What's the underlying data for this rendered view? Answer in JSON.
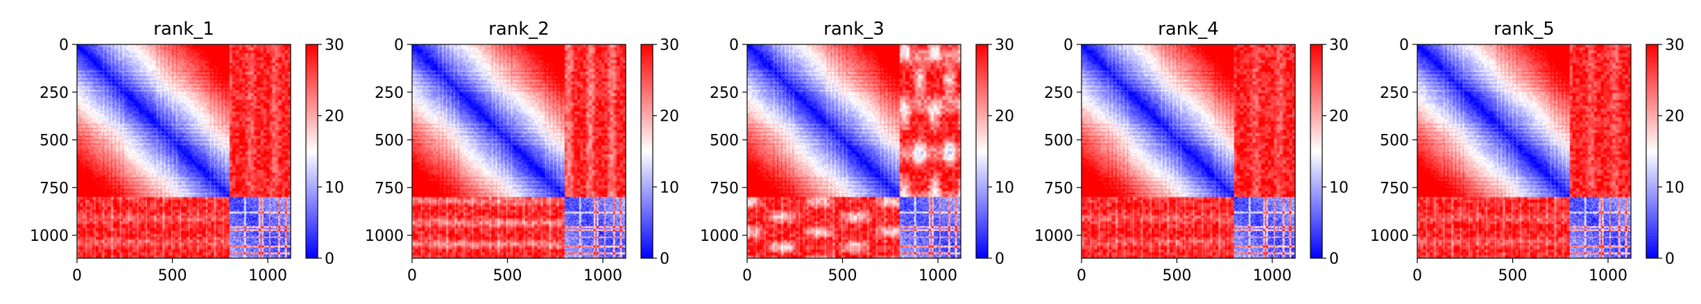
{
  "chart_data": [
    {
      "type": "heatmap",
      "title": "rank_1",
      "x_ticks": [
        0,
        500,
        1000
      ],
      "y_ticks": [
        0,
        250,
        500,
        750,
        1000
      ],
      "data_extent": [
        0,
        1120
      ],
      "block_boundary": 800,
      "colorbar": {
        "colormap": "bwr",
        "vmin": 0,
        "vmax": 30,
        "ticks": [
          0,
          10,
          20,
          30
        ]
      },
      "variant": 1
    },
    {
      "type": "heatmap",
      "title": "rank_2",
      "x_ticks": [
        0,
        500,
        1000
      ],
      "y_ticks": [
        0,
        250,
        500,
        750,
        1000
      ],
      "data_extent": [
        0,
        1120
      ],
      "block_boundary": 800,
      "colorbar": {
        "colormap": "bwr",
        "vmin": 0,
        "vmax": 30,
        "ticks": [
          0,
          10,
          20,
          30
        ]
      },
      "variant": 2
    },
    {
      "type": "heatmap",
      "title": "rank_3",
      "x_ticks": [
        0,
        500,
        1000
      ],
      "y_ticks": [
        0,
        250,
        500,
        750,
        1000
      ],
      "data_extent": [
        0,
        1120
      ],
      "block_boundary": 800,
      "colorbar": {
        "colormap": "bwr",
        "vmin": 0,
        "vmax": 30,
        "ticks": [
          0,
          10,
          20,
          30
        ]
      },
      "variant": 3
    },
    {
      "type": "heatmap",
      "title": "rank_4",
      "x_ticks": [
        0,
        500,
        1000
      ],
      "y_ticks": [
        0,
        250,
        500,
        750,
        1000
      ],
      "data_extent": [
        0,
        1120
      ],
      "block_boundary": 800,
      "colorbar": {
        "colormap": "bwr",
        "vmin": 0,
        "vmax": 30,
        "ticks": [
          0,
          10,
          20,
          30
        ]
      },
      "variant": 4
    },
    {
      "type": "heatmap",
      "title": "rank_5",
      "x_ticks": [
        0,
        500,
        1000
      ],
      "y_ticks": [
        0,
        250,
        500,
        750,
        1000
      ],
      "data_extent": [
        0,
        1120
      ],
      "block_boundary": 800,
      "colorbar": {
        "colormap": "bwr",
        "vmin": 0,
        "vmax": 30,
        "ticks": [
          0,
          10,
          20,
          30
        ]
      },
      "variant": 5
    }
  ],
  "colors": {
    "low": "#0000ff",
    "mid": "#ffffff",
    "high": "#ff0000"
  }
}
